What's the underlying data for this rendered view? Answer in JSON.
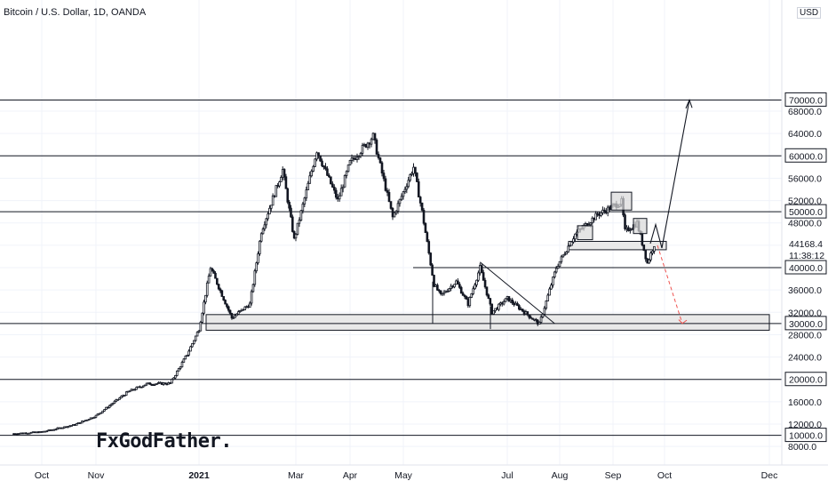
{
  "header": {
    "title": "Bitcoin / U.S. Dollar, 1D, OANDA",
    "currency_label": "USD"
  },
  "watermark": "FxGodFather.",
  "chart_data": {
    "type": "candlestick",
    "symbol": "BTCUSD",
    "interval": "1D",
    "ylim": [
      6000,
      71000
    ],
    "price_axis_ticks": [
      8000,
      12000,
      16000,
      20000,
      24000,
      28000,
      32000,
      36000,
      40000,
      44000,
      48000,
      52000,
      56000,
      60000,
      64000,
      68000
    ],
    "time_axis_labels": [
      {
        "label": "Oct",
        "date": "2020-10-01",
        "bold": false
      },
      {
        "label": "Nov",
        "date": "2020-11-01",
        "bold": false
      },
      {
        "label": "2021",
        "date": "2021-01-01",
        "bold": true
      },
      {
        "label": "Mar",
        "date": "2021-03-01",
        "bold": false
      },
      {
        "label": "Apr",
        "date": "2021-04-01",
        "bold": false
      },
      {
        "label": "May",
        "date": "2021-05-01",
        "bold": false
      },
      {
        "label": "Jul",
        "date": "2021-07-01",
        "bold": false
      },
      {
        "label": "Aug",
        "date": "2021-08-01",
        "bold": false
      },
      {
        "label": "Sep",
        "date": "2021-09-01",
        "bold": false
      },
      {
        "label": "Oct",
        "date": "2021-10-01",
        "bold": false
      },
      {
        "label": "Dec",
        "date": "2021-12-01",
        "bold": false
      }
    ],
    "price_path": [
      [
        "2020-09-15",
        10300
      ],
      [
        "2020-10-01",
        10600
      ],
      [
        "2020-10-20",
        11900
      ],
      [
        "2020-11-01",
        13500
      ],
      [
        "2020-11-20",
        17800
      ],
      [
        "2020-12-01",
        19200
      ],
      [
        "2020-12-15",
        19300
      ],
      [
        "2020-12-25",
        24500
      ],
      [
        "2021-01-01",
        29000
      ],
      [
        "2021-01-08",
        40000
      ],
      [
        "2021-01-21",
        31000
      ],
      [
        "2021-02-01",
        33500
      ],
      [
        "2021-02-08",
        46500
      ],
      [
        "2021-02-21",
        57500
      ],
      [
        "2021-02-28",
        45000
      ],
      [
        "2021-03-13",
        61000
      ],
      [
        "2021-03-25",
        52000
      ],
      [
        "2021-04-01",
        58800
      ],
      [
        "2021-04-14",
        63500
      ],
      [
        "2021-04-25",
        49000
      ],
      [
        "2021-05-07",
        58000
      ],
      [
        "2021-05-12",
        50000
      ],
      [
        "2021-05-19",
        37000
      ],
      [
        "2021-05-23",
        35000
      ],
      [
        "2021-06-01",
        37500
      ],
      [
        "2021-06-08",
        33500
      ],
      [
        "2021-06-15",
        40000
      ],
      [
        "2021-06-22",
        32000
      ],
      [
        "2021-07-01",
        34500
      ],
      [
        "2021-07-20",
        29900
      ],
      [
        "2021-07-30",
        40000
      ],
      [
        "2021-08-10",
        46000
      ],
      [
        "2021-08-23",
        49500
      ],
      [
        "2021-09-06",
        51800
      ],
      [
        "2021-09-08",
        46500
      ],
      [
        "2021-09-15",
        48000
      ],
      [
        "2021-09-21",
        40800
      ],
      [
        "2021-09-25",
        44168
      ]
    ],
    "horizontal_levels": [
      {
        "label": "70000.0",
        "price": 70000
      },
      {
        "label": "60000.0",
        "price": 60000
      },
      {
        "label": "50000.0",
        "price": 50000
      },
      {
        "label": "40000.0",
        "price": 40000
      },
      {
        "label": "30000.0",
        "price": 30000
      },
      {
        "label": "20000.0",
        "price": 20000
      },
      {
        "label": "10000.0",
        "price": 10000
      }
    ],
    "support_zones": [
      {
        "price_low": 28800,
        "price_high": 31600
      },
      {
        "price_low": 43200,
        "price_high": 44700
      }
    ],
    "last_price": {
      "label": "44168.4",
      "value": 44168.4
    },
    "countdown": "11:38:12",
    "annotations": {
      "trendline": [
        [
          "2021-06-15",
          41000
        ],
        [
          "2021-07-29",
          30000
        ]
      ],
      "projection_up_target": 70000,
      "projection_down_target": 30000
    },
    "colors": {
      "candle": "#131722",
      "grid": "#f0f3fa",
      "zone_fill": "#e9e9e9",
      "projection_up": "#131722",
      "projection_down": "#ef5350"
    }
  }
}
